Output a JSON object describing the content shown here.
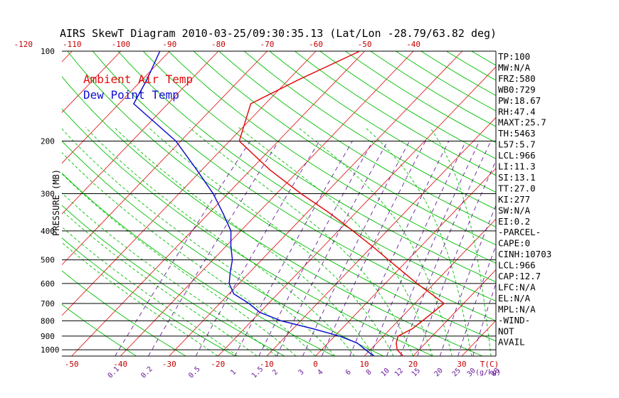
{
  "title": "AIRS SkewT Diagram 2010-03-25/09:30:35.13 (Lat/Lon -28.79/63.82 deg)",
  "legend": [
    {
      "label": "Ambient Air Temp",
      "color": "#e01010"
    },
    {
      "label": "Dew Point Temp",
      "color": "#1010d0"
    }
  ],
  "colors": {
    "temperature": "#e01010",
    "dewpoint": "#1010d0",
    "isotherm": "#e02020",
    "dry_adiabat": "#00c000",
    "moist_adiabat": "#00c000",
    "mixing_ratio": "#6a1b9a",
    "isobar": "#000000"
  },
  "ylabel": "PRESSURE (MB)",
  "pressure_ticks": [
    "100",
    "200",
    "300",
    "400",
    "500",
    "600",
    "700",
    "800",
    "900",
    "1000"
  ],
  "top_temp_ticks": [
    "-120",
    "-110",
    "-100",
    "-90",
    "-80",
    "-70",
    "-60",
    "-50",
    "-40"
  ],
  "bottom_temp_ticks": [
    "-50",
    "-40",
    "-30",
    "-20",
    "-10",
    "0",
    "10",
    "20",
    "30"
  ],
  "bottom_unit_label": "T(C)",
  "mixing_ratio_ticks": [
    "0.1",
    "0.2",
    "0.5",
    "1",
    "1.5",
    "2",
    "3",
    "4",
    "6",
    "8",
    "10",
    "12",
    "15",
    "20",
    "25",
    "30",
    "40"
  ],
  "mixing_ratio_unit": "(g/kg)",
  "stats": [
    "TP:100",
    "MW:N/A",
    "FRZ:580",
    "WB0:729",
    "PW:18.67",
    "RH:47.4",
    "MAXT:25.7",
    "TH:5463",
    "L57:5.7",
    "LCL:966",
    "LI:11.3",
    "SI:13.1",
    "TT:27.0",
    "KI:277",
    "SW:N/A",
    "EI:0.2",
    "-PARCEL-",
    "CAPE:0",
    "CINH:10703",
    "LCL:966",
    "CAP:12.7",
    "LFC:N/A",
    "EL:N/A",
    "MPL:N/A",
    "-WIND-",
    "NOT",
    "AVAIL"
  ],
  "chart_data": {
    "type": "line",
    "chart_kind": "skew-T log-P",
    "title": "AIRS SkewT Diagram 2010-03-25/09:30:35.13 (Lat/Lon -28.79/63.82 deg)",
    "ylabel": "PRESSURE (MB)",
    "xlabel": "T(C)",
    "y_scale": "log",
    "ylim": [
      1050,
      100
    ],
    "xlim_at_1050mb": [
      -52,
      37
    ],
    "series": [
      {
        "name": "Ambient Air Temp",
        "pressure": [
          1050,
          1000,
          950,
          900,
          850,
          800,
          750,
          700,
          650,
          600,
          550,
          500,
          450,
          400,
          350,
          300,
          250,
          200,
          150,
          125,
          100
        ],
        "temperature": [
          18.0,
          15.5,
          14.0,
          13.0,
          14.5,
          15.0,
          15.5,
          16.0,
          11.5,
          6.5,
          1.5,
          -4.0,
          -10.0,
          -17.0,
          -25.0,
          -35.0,
          -46.0,
          -58.0,
          -63.0,
          -58.0,
          -51.0
        ]
      },
      {
        "name": "Dew Point Temp",
        "pressure": [
          1050,
          1000,
          950,
          900,
          850,
          800,
          750,
          700,
          650,
          600,
          550,
          500,
          450,
          400,
          350,
          300,
          250,
          200,
          150,
          125,
          100
        ],
        "temperature": [
          12.0,
          9.0,
          6.0,
          1.0,
          -6.0,
          -14.0,
          -20.0,
          -24.0,
          -29.0,
          -32.0,
          -34.0,
          -36.0,
          -39.0,
          -42.0,
          -47.0,
          -53.0,
          -61.0,
          -71.0,
          -87.0,
          -89.0,
          -92.0
        ]
      }
    ]
  }
}
